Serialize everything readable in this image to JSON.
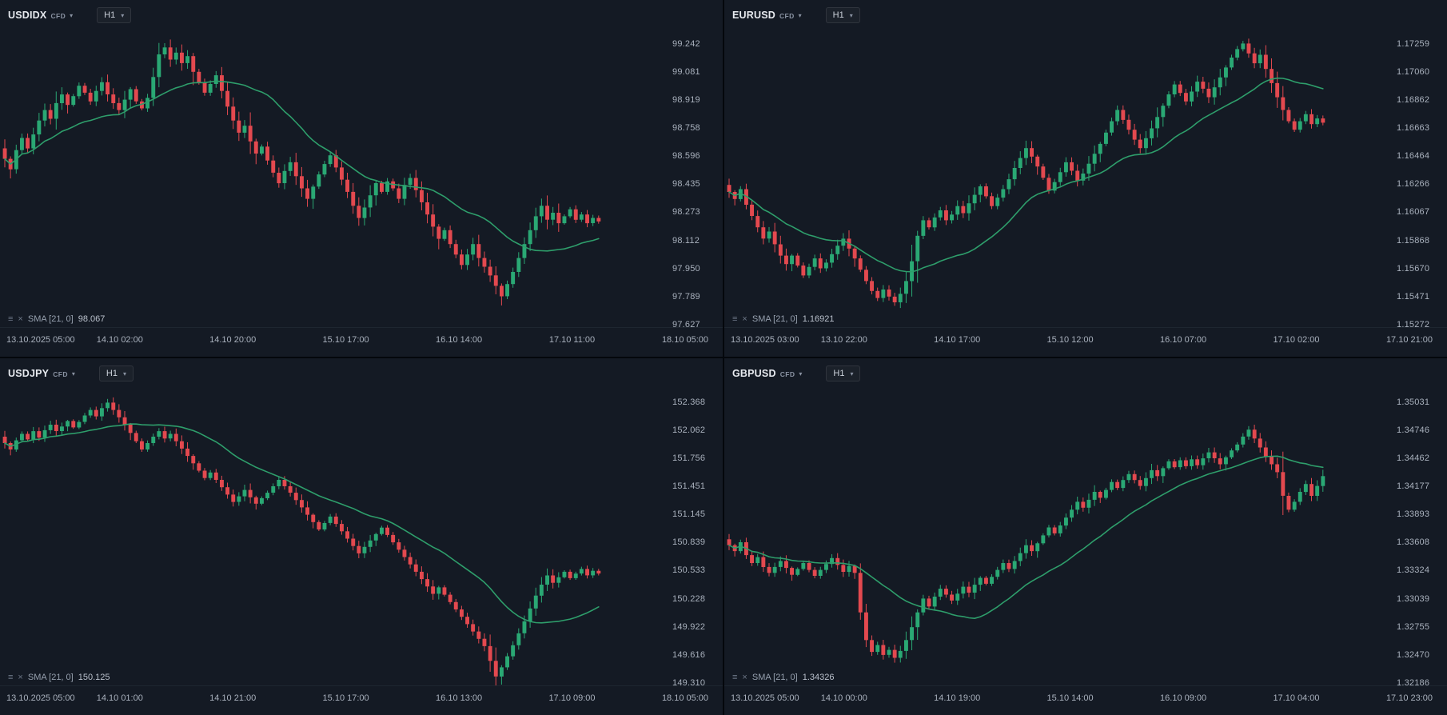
{
  "theme": {
    "background": "#141a24",
    "divider": "#04070c",
    "axis_text": "#a9b1bd",
    "candle_up": "#2aa874",
    "candle_down": "#e3494f",
    "sma_line": "#2e9e6b",
    "axis_border": "#1e2630"
  },
  "icons": {
    "chevron_down": "▾",
    "indicator_menu": "≡",
    "indicator_close": "×"
  },
  "chart_data": [
    {
      "type": "candlestick",
      "symbol": "USDIDX",
      "instrument_type": "CFD",
      "timeframe": "H1",
      "indicator": {
        "label": "SMA [21, 0]",
        "value": "98.067",
        "period": 21
      },
      "y_max": 99.242,
      "y_min": 97.627,
      "y_axis_labels": [
        "99.242",
        "99.081",
        "98.919",
        "98.758",
        "98.596",
        "98.435",
        "98.273",
        "98.112",
        "97.950",
        "97.789",
        "97.627"
      ],
      "x_axis_labels": [
        "13.10.2025  05:00",
        "14.10  02:00",
        "14.10  20:00",
        "15.10  17:00",
        "16.10  14:00",
        "17.10  11:00",
        "18.10  05:00"
      ],
      "closes": [
        98.58,
        98.52,
        98.63,
        98.7,
        98.64,
        98.72,
        98.8,
        98.86,
        98.81,
        98.9,
        98.95,
        98.89,
        98.94,
        99.0,
        98.96,
        98.91,
        98.97,
        99.02,
        98.95,
        98.9,
        98.86,
        98.92,
        98.98,
        98.91,
        98.87,
        98.93,
        99.05,
        99.18,
        99.22,
        99.15,
        99.19,
        99.13,
        99.17,
        99.08,
        99.02,
        98.96,
        99.01,
        99.06,
        98.97,
        98.88,
        98.8,
        98.73,
        98.77,
        98.68,
        98.61,
        98.65,
        98.57,
        98.5,
        98.44,
        98.51,
        98.56,
        98.48,
        98.41,
        98.35,
        98.42,
        98.49,
        98.55,
        98.6,
        98.53,
        98.46,
        98.39,
        98.31,
        98.24,
        98.3,
        98.37,
        98.44,
        98.39,
        98.45,
        98.41,
        98.35,
        98.43,
        98.47,
        98.4,
        98.33,
        98.26,
        98.19,
        98.12,
        98.17,
        98.09,
        98.03,
        97.97,
        98.03,
        98.09,
        98.01,
        97.96,
        97.91,
        97.85,
        97.79,
        97.86,
        97.93,
        98.01,
        98.09,
        98.17,
        98.25,
        98.31,
        98.23,
        98.27,
        98.21,
        98.25,
        98.29,
        98.23,
        98.26,
        98.21,
        98.24,
        98.22
      ]
    },
    {
      "type": "candlestick",
      "symbol": "EURUSD",
      "instrument_type": "CFD",
      "timeframe": "H1",
      "indicator": {
        "label": "SMA [21, 0]",
        "value": "1.16921",
        "period": 21
      },
      "y_max": 1.17259,
      "y_min": 1.15272,
      "y_axis_labels": [
        "1.17259",
        "1.17060",
        "1.16862",
        "1.16663",
        "1.16464",
        "1.16266",
        "1.16067",
        "1.15868",
        "1.15670",
        "1.15471",
        "1.15272"
      ],
      "x_axis_labels": [
        "13.10.2025  03:00",
        "13.10  22:00",
        "14.10  17:00",
        "15.10  12:00",
        "16.10  07:00",
        "17.10  02:00",
        "17.10  21:00"
      ],
      "closes": [
        1.1621,
        1.1616,
        1.1623,
        1.1612,
        1.1604,
        1.1596,
        1.1588,
        1.1593,
        1.1584,
        1.1576,
        1.157,
        1.1576,
        1.1569,
        1.1562,
        1.1568,
        1.1574,
        1.1567,
        1.1571,
        1.1577,
        1.1583,
        1.1588,
        1.1581,
        1.1574,
        1.1566,
        1.1558,
        1.1551,
        1.1546,
        1.1552,
        1.1547,
        1.1543,
        1.1549,
        1.1558,
        1.1572,
        1.159,
        1.1601,
        1.1596,
        1.1603,
        1.1608,
        1.1601,
        1.1605,
        1.1611,
        1.1606,
        1.1613,
        1.1619,
        1.1625,
        1.1618,
        1.1611,
        1.1617,
        1.1623,
        1.163,
        1.1638,
        1.1645,
        1.1652,
        1.1646,
        1.1639,
        1.1631,
        1.1622,
        1.1628,
        1.1635,
        1.1642,
        1.1636,
        1.1629,
        1.1634,
        1.1641,
        1.1648,
        1.1655,
        1.1663,
        1.1671,
        1.1679,
        1.1672,
        1.1665,
        1.1658,
        1.1652,
        1.1659,
        1.1666,
        1.1674,
        1.1682,
        1.169,
        1.1697,
        1.1691,
        1.1685,
        1.1692,
        1.1699,
        1.1694,
        1.1688,
        1.1695,
        1.1702,
        1.1709,
        1.1716,
        1.1722,
        1.1726,
        1.1719,
        1.1712,
        1.1718,
        1.1708,
        1.1698,
        1.1688,
        1.1679,
        1.1671,
        1.1665,
        1.1671,
        1.1676,
        1.1669,
        1.1673,
        1.167
      ]
    },
    {
      "type": "candlestick",
      "symbol": "USDJPY",
      "instrument_type": "CFD",
      "timeframe": "H1",
      "indicator": {
        "label": "SMA [21, 0]",
        "value": "150.125",
        "period": 21
      },
      "y_max": 152.368,
      "y_min": 149.31,
      "y_axis_labels": [
        "152.368",
        "152.062",
        "151.756",
        "151.451",
        "151.145",
        "150.839",
        "150.533",
        "150.228",
        "149.922",
        "149.616",
        "149.310"
      ],
      "x_axis_labels": [
        "13.10.2025  05:00",
        "14.10  01:00",
        "14.10  21:00",
        "15.10  17:00",
        "16.10  13:00",
        "17.10  09:00",
        "18.10  05:00"
      ],
      "closes": [
        151.92,
        151.85,
        151.95,
        152.02,
        151.96,
        152.05,
        151.98,
        152.06,
        152.12,
        152.05,
        152.1,
        152.16,
        152.09,
        152.15,
        152.22,
        152.28,
        152.21,
        152.3,
        152.36,
        152.28,
        152.2,
        152.12,
        152.03,
        151.94,
        151.85,
        151.92,
        151.99,
        152.05,
        151.97,
        152.02,
        151.94,
        151.86,
        151.78,
        151.7,
        151.62,
        151.54,
        151.6,
        151.52,
        151.44,
        151.36,
        151.28,
        151.34,
        151.41,
        151.33,
        151.26,
        151.32,
        151.38,
        151.45,
        151.52,
        151.45,
        151.38,
        151.3,
        151.22,
        151.14,
        151.06,
        150.98,
        151.05,
        151.12,
        151.04,
        150.96,
        150.88,
        150.8,
        150.72,
        150.79,
        150.86,
        150.93,
        151.0,
        150.92,
        150.84,
        150.76,
        150.68,
        150.6,
        150.52,
        150.44,
        150.36,
        150.28,
        150.35,
        150.27,
        150.19,
        150.11,
        150.03,
        149.95,
        149.87,
        149.79,
        149.71,
        149.55,
        149.38,
        149.48,
        149.6,
        149.72,
        149.85,
        149.98,
        150.12,
        150.26,
        150.38,
        150.48,
        150.4,
        150.46,
        150.52,
        150.45,
        150.5,
        150.55,
        150.48,
        150.53,
        150.5
      ]
    },
    {
      "type": "candlestick",
      "symbol": "GBPUSD",
      "instrument_type": "CFD",
      "timeframe": "H1",
      "indicator": {
        "label": "SMA [21, 0]",
        "value": "1.34326",
        "period": 21
      },
      "y_max": 1.35031,
      "y_min": 1.32186,
      "y_axis_labels": [
        "1.35031",
        "1.34746",
        "1.34462",
        "1.34177",
        "1.33893",
        "1.33608",
        "1.33324",
        "1.33039",
        "1.32755",
        "1.32470",
        "1.32186"
      ],
      "x_axis_labels": [
        "13.10.2025  05:00",
        "14.10  00:00",
        "14.10  19:00",
        "15.10  14:00",
        "16.10  09:00",
        "17.10  04:00",
        "17.10  23:00"
      ],
      "closes": [
        1.3358,
        1.3352,
        1.3361,
        1.3348,
        1.334,
        1.3346,
        1.3336,
        1.333,
        1.3336,
        1.3342,
        1.3335,
        1.3328,
        1.3334,
        1.334,
        1.3333,
        1.3327,
        1.3333,
        1.3339,
        1.3345,
        1.3338,
        1.3331,
        1.3337,
        1.333,
        1.329,
        1.3262,
        1.325,
        1.3257,
        1.3247,
        1.3252,
        1.3244,
        1.3251,
        1.3262,
        1.3275,
        1.329,
        1.3304,
        1.3296,
        1.3306,
        1.3314,
        1.3308,
        1.3302,
        1.3309,
        1.3316,
        1.331,
        1.3318,
        1.3325,
        1.3319,
        1.3326,
        1.3333,
        1.334,
        1.3334,
        1.3342,
        1.335,
        1.3358,
        1.3352,
        1.336,
        1.3368,
        1.3376,
        1.337,
        1.3378,
        1.3386,
        1.3394,
        1.3402,
        1.3396,
        1.3404,
        1.3412,
        1.3406,
        1.3414,
        1.3422,
        1.3416,
        1.3424,
        1.343,
        1.3424,
        1.3418,
        1.3426,
        1.3434,
        1.3428,
        1.3436,
        1.3443,
        1.3437,
        1.3444,
        1.3438,
        1.3445,
        1.3439,
        1.3446,
        1.3452,
        1.3446,
        1.344,
        1.3447,
        1.3454,
        1.346,
        1.3468,
        1.3475,
        1.3466,
        1.3457,
        1.3448,
        1.344,
        1.3432,
        1.3408,
        1.3394,
        1.3402,
        1.3412,
        1.342,
        1.3408,
        1.3418,
        1.3428
      ]
    }
  ]
}
